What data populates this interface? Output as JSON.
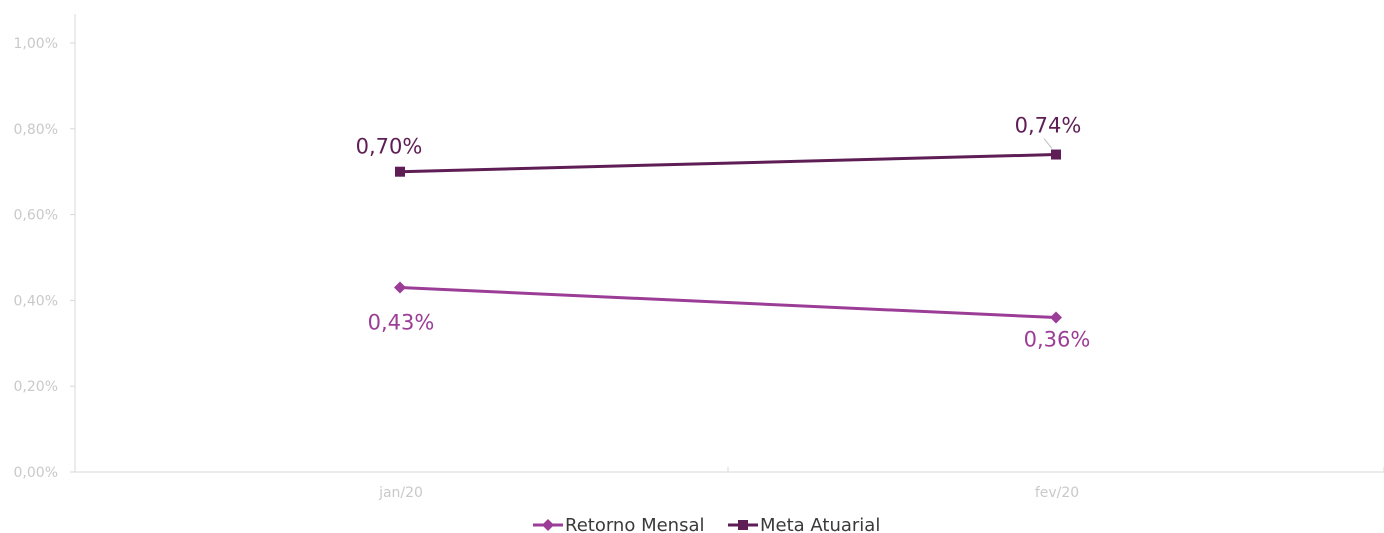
{
  "chart_data": {
    "type": "line",
    "categories": [
      "jan/20",
      "fev/20"
    ],
    "y_tick_labels": [
      "0,00%",
      "0,20%",
      "0,40%",
      "0,60%",
      "0,80%",
      "1,00%"
    ],
    "ylim": [
      0,
      1.0
    ],
    "y_unit": "%",
    "grid": false,
    "legend_position": "bottom",
    "series": [
      {
        "name": "Retorno Mensal",
        "values": [
          0.43,
          0.36
        ],
        "labels": [
          "0,43%",
          "0,36%"
        ],
        "color": "#9b3d97",
        "marker": "diamond"
      },
      {
        "name": "Meta Atuarial",
        "values": [
          0.7,
          0.74
        ],
        "labels": [
          "0,70%",
          "0,74%"
        ],
        "color": "#5e1e55",
        "marker": "square"
      }
    ]
  },
  "colors": {
    "axis": "#d9d9d9",
    "tick_text": "#c9c9c9"
  }
}
